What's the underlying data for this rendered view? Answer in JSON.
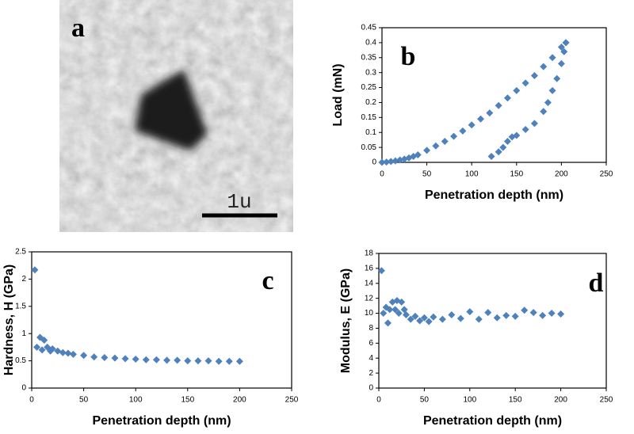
{
  "image_panel": {
    "label": "a",
    "scale_bar": "1u"
  },
  "chart_data": [
    {
      "type": "scatter",
      "annotation": "b",
      "x_label": "Penetration depth (nm)",
      "y_label": "Load (mN)",
      "xlim": [
        0,
        250
      ],
      "xticks": [
        0,
        50,
        100,
        150,
        200,
        250
      ],
      "ylim": [
        0,
        0.45
      ],
      "yticks": [
        0,
        0.05,
        0.1,
        0.15,
        0.2,
        0.25,
        0.3,
        0.35,
        0.4,
        0.45
      ],
      "series": [
        {
          "color": "#4f81bd",
          "x": [
            0,
            5,
            10,
            15,
            20,
            25,
            30,
            35,
            40,
            50,
            60,
            70,
            80,
            90,
            100,
            110,
            120,
            130,
            140,
            150,
            160,
            170,
            180,
            190,
            200,
            205
          ],
          "values": [
            0,
            0.001,
            0.003,
            0.005,
            0.008,
            0.011,
            0.015,
            0.02,
            0.025,
            0.04,
            0.055,
            0.07,
            0.087,
            0.105,
            0.125,
            0.145,
            0.165,
            0.19,
            0.215,
            0.24,
            0.265,
            0.29,
            0.32,
            0.35,
            0.385,
            0.4
          ]
        },
        {
          "color": "#4f81bd",
          "x": [
            205,
            203,
            200,
            195,
            190,
            185,
            180,
            170,
            160,
            150,
            145,
            140,
            135,
            130,
            122
          ],
          "values": [
            0.4,
            0.37,
            0.33,
            0.28,
            0.24,
            0.2,
            0.17,
            0.13,
            0.11,
            0.09,
            0.085,
            0.07,
            0.05,
            0.035,
            0.02
          ]
        }
      ]
    },
    {
      "type": "scatter",
      "annotation": "c",
      "x_label": "Penetration depth (nm)",
      "y_label": "Hardness, H (GPa)",
      "xlim": [
        0,
        250
      ],
      "xticks": [
        0,
        50,
        100,
        150,
        200,
        250
      ],
      "ylim": [
        0,
        2.5
      ],
      "yticks": [
        0,
        0.5,
        1,
        1.5,
        2,
        2.5
      ],
      "series": [
        {
          "color": "#4f81bd",
          "x": [
            3,
            5,
            8,
            10,
            12,
            15,
            18,
            20,
            25,
            30,
            35,
            40,
            50,
            60,
            70,
            80,
            90,
            100,
            110,
            120,
            130,
            140,
            150,
            160,
            170,
            180,
            190,
            200
          ],
          "values": [
            2.17,
            0.75,
            0.93,
            0.7,
            0.88,
            0.75,
            0.68,
            0.72,
            0.68,
            0.65,
            0.64,
            0.62,
            0.6,
            0.57,
            0.56,
            0.55,
            0.54,
            0.53,
            0.52,
            0.52,
            0.51,
            0.51,
            0.5,
            0.5,
            0.5,
            0.49,
            0.49,
            0.49
          ]
        }
      ]
    },
    {
      "type": "scatter",
      "annotation": "d",
      "x_label": "Penetration depth (nm)",
      "y_label": "Modulus, E (GPa)",
      "xlim": [
        0,
        250
      ],
      "xticks": [
        0,
        50,
        100,
        150,
        200,
        250
      ],
      "ylim": [
        0,
        18
      ],
      "yticks": [
        0,
        2,
        4,
        6,
        8,
        10,
        12,
        14,
        16,
        18
      ],
      "series": [
        {
          "color": "#4f81bd",
          "x": [
            3,
            5,
            8,
            10,
            12,
            15,
            18,
            20,
            22,
            25,
            28,
            30,
            35,
            40,
            45,
            50,
            55,
            60,
            70,
            80,
            90,
            100,
            110,
            120,
            130,
            140,
            150,
            160,
            170,
            180,
            190,
            200
          ],
          "values": [
            15.7,
            10,
            10.8,
            8.7,
            10.5,
            11.5,
            10.5,
            11.7,
            10,
            11.5,
            10.5,
            9.8,
            9.2,
            9.6,
            9,
            9.4,
            8.9,
            9.5,
            9.2,
            9.8,
            9.3,
            10.2,
            9.2,
            10.1,
            9.4,
            9.7,
            9.6,
            10.4,
            10.1,
            9.7,
            10,
            9.9
          ]
        }
      ]
    }
  ]
}
